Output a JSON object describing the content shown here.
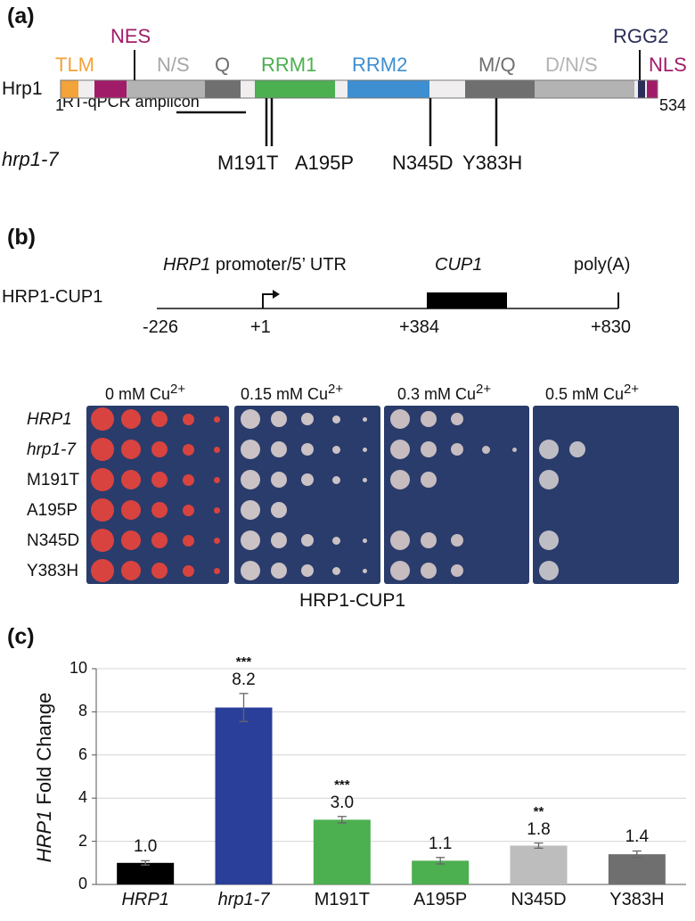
{
  "panel_a": {
    "label": "(a)",
    "protein_name": "Hrp1",
    "start_residue": "1",
    "end_residue": "534",
    "mutant_label": "hrp1-7",
    "amplicon_label": "RT-qPCR amplicon",
    "domains": [
      {
        "name": "TLM",
        "color": "#f2a33a"
      },
      {
        "name": "NES",
        "color": "#a11c68"
      },
      {
        "name": "N/S",
        "color": "#b3b3b3"
      },
      {
        "name": "Q",
        "color": "#6f6f6f"
      },
      {
        "name": "RRM1",
        "color": "#4caf50"
      },
      {
        "name": "RRM2",
        "color": "#3d8fd1"
      },
      {
        "name": "M/Q",
        "color": "#6f6f6f"
      },
      {
        "name": "D/N/S",
        "color": "#b3b3b3"
      },
      {
        "name": "RGG2",
        "color": "#2b2d5a"
      },
      {
        "name": "NLS",
        "color": "#a11c68"
      }
    ],
    "mutations": [
      "M191T",
      "A195P",
      "N345D",
      "Y383H"
    ]
  },
  "panel_b": {
    "label": "(b)",
    "construct_name": "HRP1-CUP1",
    "promoter_label_italic": "HRP1",
    "promoter_label_rest": " promoter/5’ UTR",
    "gene_label": "CUP1",
    "polya_label": "poly(A)",
    "positions": [
      "-226",
      "+1",
      "+384",
      "+830"
    ],
    "conditions": [
      "0 mM Cu",
      "0.15 mM Cu",
      "0.3 mM Cu",
      "0.5 mM Cu"
    ],
    "ion_superscript": "2+",
    "strains": [
      "HRP1",
      "hrp1-7",
      "M191T",
      "A195P",
      "N345D",
      "Y383H"
    ],
    "footer": "HRP1-CUP1"
  },
  "chart_data": {
    "type": "bar",
    "panel_label": "(c)",
    "categories": [
      "HRP1",
      "hrp1-7",
      "M191T",
      "A195P",
      "N345D",
      "Y383H"
    ],
    "values": [
      1.0,
      8.2,
      3.0,
      1.1,
      1.8,
      1.4
    ],
    "value_labels": [
      "1.0",
      "8.2",
      "3.0",
      "1.1",
      "1.8",
      "1.4"
    ],
    "errors": [
      0.1,
      0.65,
      0.15,
      0.15,
      0.12,
      0.15
    ],
    "significance": [
      "",
      "***",
      "***",
      "",
      "**",
      ""
    ],
    "colors": [
      "#000000",
      "#2a3f9a",
      "#4caf50",
      "#4caf50",
      "#bdbdbd",
      "#6f6f6f"
    ],
    "ylabel_italic": "HRP1",
    "ylabel_rest": " Fold Change",
    "xlabel": "",
    "ylim": [
      0,
      10
    ],
    "yticks": [
      "0",
      "2",
      "4",
      "6",
      "8",
      "10"
    ],
    "grid": true
  }
}
